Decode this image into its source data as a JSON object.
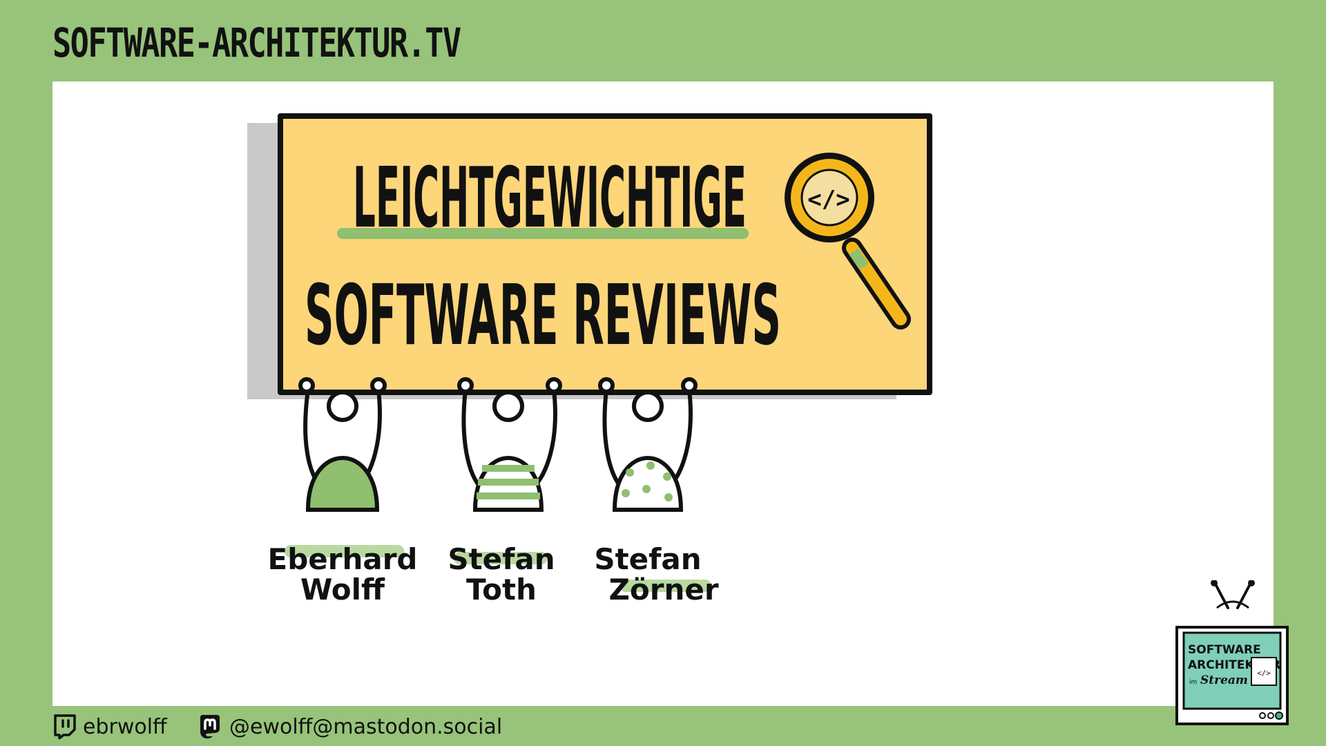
{
  "header": {
    "site_title": "SOFTWARE-ARCHITEKTUR.TV"
  },
  "sign": {
    "line1": "LEICHTGEWICHTIGE",
    "line2": "SOFTWARE REVIEWS",
    "magnifier_code": "</>"
  },
  "speakers": [
    {
      "first": "Eberhard",
      "last": "Wolff"
    },
    {
      "first": "Stefan",
      "last": "Toth"
    },
    {
      "first": "Stefan",
      "last": "Zörner"
    }
  ],
  "footer": {
    "twitch_handle": "ebrwolff",
    "mastodon_handle": "@ewolff@mastodon.social"
  },
  "logo": {
    "line1": "SOFTWARE",
    "line2": "ARCHITEKTUR",
    "line3_small": "im",
    "line3": "Stream",
    "code": "</>"
  },
  "colors": {
    "background_green": "#97c37a",
    "sign_yellow": "#fdd67a",
    "accent_green": "#8fbf6f",
    "magnifier_gold": "#f4b71b"
  }
}
